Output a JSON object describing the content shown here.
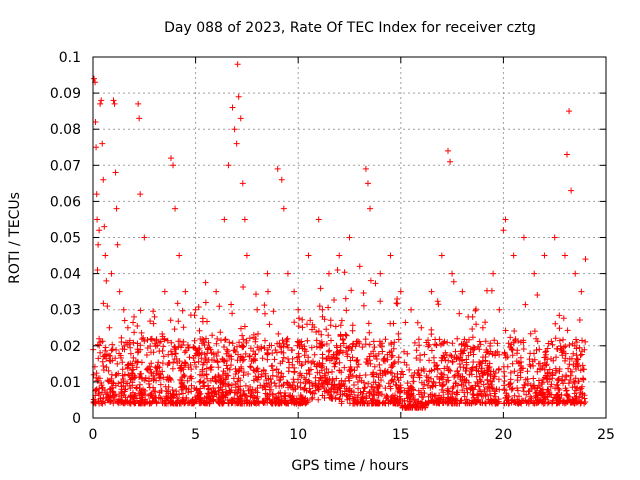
{
  "chart_data": {
    "type": "scatter",
    "title": "Day 088 of 2023, Rate Of TEC Index for receiver cztg",
    "xlabel": "GPS time / hours",
    "ylabel": "ROTI / TECUs",
    "xlim": [
      0,
      25
    ],
    "ylim": [
      0,
      0.1
    ],
    "xticks": [
      0,
      5,
      10,
      15,
      20,
      25
    ],
    "yticks": [
      0,
      0.01,
      0.02,
      0.03,
      0.04,
      0.05,
      0.06,
      0.07,
      0.08,
      0.09,
      0.1
    ],
    "xtick_labels": [
      "0",
      "5",
      "10",
      "15",
      "20",
      "25"
    ],
    "ytick_labels": [
      "0",
      "0.01",
      "0.02",
      "0.03",
      "0.04",
      "0.05",
      "0.06",
      "0.07",
      "0.08",
      "0.09",
      "0.1"
    ],
    "grid": true,
    "marker": "+",
    "color": "#ff0000",
    "series": [
      {
        "name": "ROTI",
        "x": [
          0.05,
          0.1,
          0.12,
          0.15,
          0.18,
          0.2,
          0.22,
          0.25,
          0.3,
          0.35,
          0.4,
          0.45,
          0.5,
          0.55,
          0.6,
          0.65,
          0.7,
          0.8,
          0.9,
          1.0,
          1.05,
          1.1,
          1.15,
          1.2,
          1.3,
          1.5,
          1.7,
          2.0,
          2.2,
          2.25,
          2.3,
          2.5,
          3.0,
          3.5,
          3.8,
          3.9,
          4.0,
          4.2,
          4.5,
          5.0,
          5.5,
          6.0,
          6.4,
          6.6,
          6.8,
          6.9,
          7.0,
          7.05,
          7.1,
          7.2,
          7.3,
          7.4,
          7.5,
          8.0,
          8.5,
          9.0,
          9.2,
          9.3,
          9.5,
          9.8,
          10.0,
          10.5,
          11.0,
          11.5,
          12.0,
          12.5,
          13.0,
          13.3,
          13.4,
          13.5,
          14.0,
          14.5,
          15.0,
          15.5,
          16.0,
          16.5,
          17.0,
          17.3,
          17.4,
          17.5,
          18.0,
          18.5,
          19.0,
          19.5,
          19.8,
          20.0,
          20.1,
          20.5,
          21.0,
          21.5,
          22.0,
          22.5,
          23.0,
          23.1,
          23.2,
          23.3,
          23.5,
          23.8,
          24.0
        ],
        "y": [
          0.094,
          0.093,
          0.082,
          0.075,
          0.062,
          0.055,
          0.041,
          0.048,
          0.052,
          0.087,
          0.088,
          0.076,
          0.066,
          0.053,
          0.045,
          0.038,
          0.031,
          0.025,
          0.04,
          0.088,
          0.087,
          0.068,
          0.058,
          0.048,
          0.035,
          0.03,
          0.025,
          0.028,
          0.087,
          0.083,
          0.062,
          0.05,
          0.028,
          0.035,
          0.072,
          0.07,
          0.058,
          0.045,
          0.035,
          0.03,
          0.032,
          0.035,
          0.055,
          0.07,
          0.086,
          0.08,
          0.076,
          0.098,
          0.089,
          0.083,
          0.065,
          0.055,
          0.045,
          0.03,
          0.04,
          0.069,
          0.066,
          0.058,
          0.04,
          0.035,
          0.03,
          0.045,
          0.055,
          0.04,
          0.045,
          0.05,
          0.042,
          0.069,
          0.065,
          0.058,
          0.04,
          0.045,
          0.035,
          0.03,
          0.025,
          0.035,
          0.045,
          0.074,
          0.071,
          0.04,
          0.035,
          0.028,
          0.025,
          0.04,
          0.03,
          0.052,
          0.055,
          0.045,
          0.05,
          0.04,
          0.045,
          0.05,
          0.045,
          0.073,
          0.085,
          0.063,
          0.04,
          0.035,
          0.044
        ]
      }
    ]
  }
}
